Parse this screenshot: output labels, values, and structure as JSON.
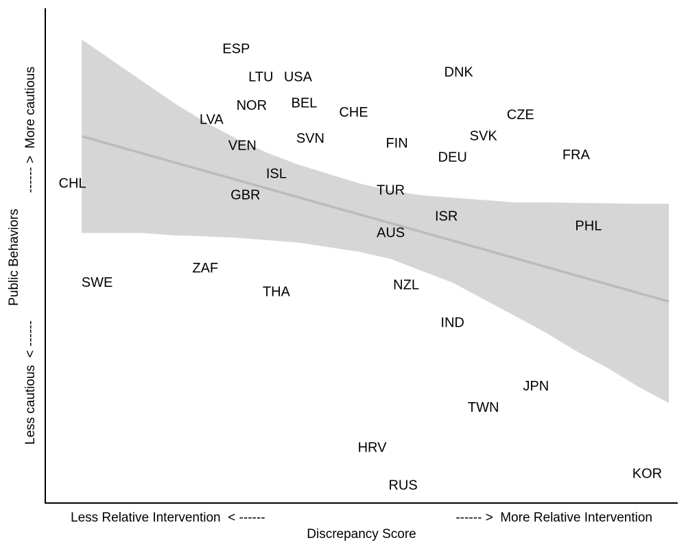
{
  "chart_data": {
    "type": "scatter",
    "title": "",
    "xlabel": "Discrepancy Score",
    "ylabel": "Public Behaviors",
    "x_left_annotation": "Less Relative Intervention  < ------",
    "x_right_annotation": "------ >  More Relative Intervention",
    "y_bottom_annotation": "Less cautious  < ------",
    "y_top_annotation": "------ >  More cautious",
    "xlim": [
      0,
      100
    ],
    "ylim": [
      0,
      100
    ],
    "grid": false,
    "points": [
      {
        "label": "ESP",
        "x": 30,
        "y": 94
      },
      {
        "label": "LTU",
        "x": 34,
        "y": 88
      },
      {
        "label": "USA",
        "x": 40,
        "y": 88
      },
      {
        "label": "DNK",
        "x": 66,
        "y": 89
      },
      {
        "label": "NOR",
        "x": 32.5,
        "y": 82
      },
      {
        "label": "BEL",
        "x": 41,
        "y": 82.5
      },
      {
        "label": "CHE",
        "x": 49,
        "y": 80.5
      },
      {
        "label": "CZE",
        "x": 76,
        "y": 80
      },
      {
        "label": "LVA",
        "x": 26,
        "y": 79
      },
      {
        "label": "SVK",
        "x": 70,
        "y": 75.5
      },
      {
        "label": "SVN",
        "x": 42,
        "y": 75
      },
      {
        "label": "FIN",
        "x": 56,
        "y": 74
      },
      {
        "label": "VEN",
        "x": 31,
        "y": 73.5
      },
      {
        "label": "FRA",
        "x": 85,
        "y": 71.5
      },
      {
        "label": "DEU",
        "x": 65,
        "y": 71
      },
      {
        "label": "ISL",
        "x": 36.5,
        "y": 67.5
      },
      {
        "label": "CHL",
        "x": 3.5,
        "y": 65.5
      },
      {
        "label": "TUR",
        "x": 55,
        "y": 64
      },
      {
        "label": "GBR",
        "x": 31.5,
        "y": 63
      },
      {
        "label": "ISR",
        "x": 64,
        "y": 58.5
      },
      {
        "label": "PHL",
        "x": 87,
        "y": 56.5
      },
      {
        "label": "AUS",
        "x": 55,
        "y": 55
      },
      {
        "label": "ZAF",
        "x": 25,
        "y": 47.5
      },
      {
        "label": "SWE",
        "x": 7.5,
        "y": 44.5
      },
      {
        "label": "NZL",
        "x": 57.5,
        "y": 44
      },
      {
        "label": "THA",
        "x": 36.5,
        "y": 42.5
      },
      {
        "label": "IND",
        "x": 65,
        "y": 36
      },
      {
        "label": "JPN",
        "x": 78.5,
        "y": 22.5
      },
      {
        "label": "TWN",
        "x": 70,
        "y": 18
      },
      {
        "label": "HRV",
        "x": 52,
        "y": 9.5
      },
      {
        "label": "RUS",
        "x": 57,
        "y": 1.5
      },
      {
        "label": "KOR",
        "x": 96.5,
        "y": 4
      }
    ],
    "trend_line": {
      "x": [
        5,
        100
      ],
      "y": [
        75.5,
        40.5
      ]
    },
    "confidence_band": {
      "x": [
        5,
        10,
        15,
        20,
        25,
        30,
        35,
        40,
        45,
        50,
        55,
        60,
        65,
        70,
        75,
        80,
        85,
        90,
        95,
        100
      ],
      "upper": [
        96,
        91.5,
        87,
        82.5,
        78.5,
        75,
        72,
        69.5,
        67.5,
        65.5,
        64,
        63,
        62.5,
        62,
        61.5,
        61.5,
        61.4,
        61.3,
        61.2,
        61.2
      ],
      "lower": [
        55,
        55,
        55,
        54.5,
        54.3,
        54,
        53.5,
        53,
        52,
        51,
        49.5,
        47,
        44.5,
        41,
        37.5,
        34,
        30,
        26.5,
        22.5,
        19
      ]
    },
    "colors": {
      "band": "#d6d6d6",
      "trend": "#bbbbbb",
      "axis": "#000000",
      "text": "#000000"
    }
  }
}
